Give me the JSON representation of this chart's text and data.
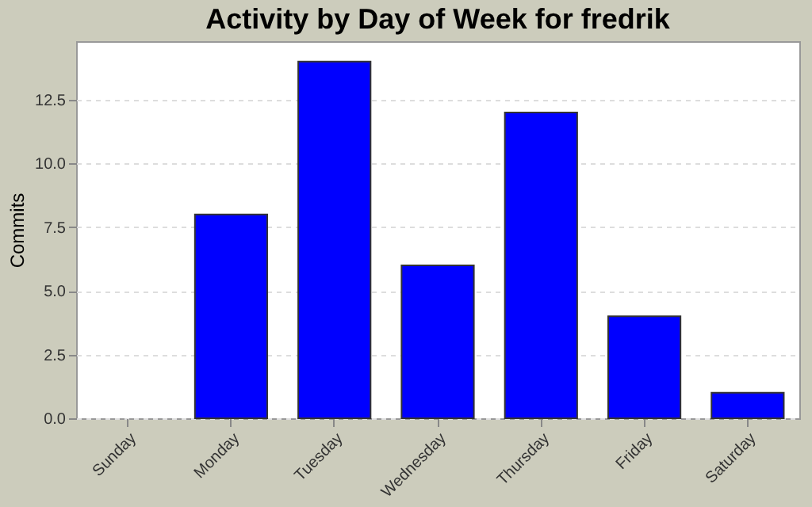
{
  "chart_data": {
    "type": "bar",
    "title": "Activity by Day of Week for fredrik",
    "ylabel": "Commits",
    "categories": [
      "Sunday",
      "Monday",
      "Tuesday",
      "Wednesday",
      "Thursday",
      "Friday",
      "Saturday"
    ],
    "values": [
      0,
      8,
      14,
      6,
      12,
      4,
      1
    ],
    "color": "#0000ff",
    "ylim": [
      0,
      14.8
    ],
    "yticks": [
      {
        "value": 0,
        "label": "0.0"
      },
      2.5,
      {
        "value": 5,
        "label": "5.0"
      },
      7.5,
      {
        "value": 10,
        "label": "10.0"
      },
      12.5
    ],
    "grid": "y"
  }
}
